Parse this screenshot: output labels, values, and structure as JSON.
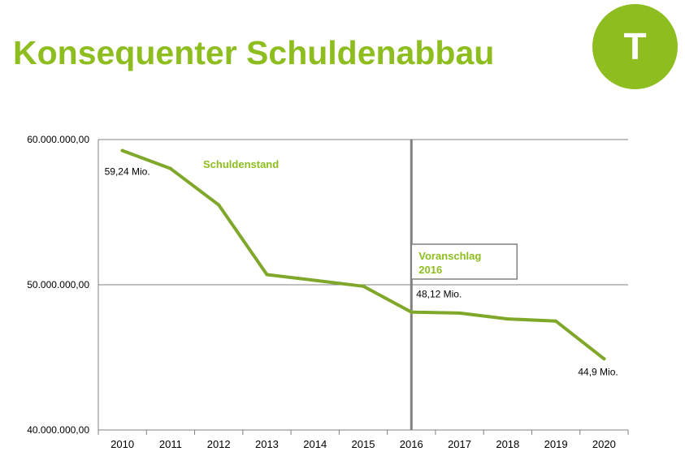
{
  "title": "Konsequenter Schuldenabbau",
  "logo": {
    "letter": "T",
    "color": "#8dbd1f"
  },
  "colors": {
    "accent": "#8dbd1f",
    "line": "#7fa82a",
    "forecast_marker": "#808080",
    "gridline": "#808080"
  },
  "chart_data": {
    "type": "line",
    "title": "",
    "xlabel": "",
    "ylabel": "",
    "categories": [
      "2010",
      "2011",
      "2012",
      "2013",
      "2014",
      "2015",
      "2016",
      "2017",
      "2018",
      "2019",
      "2020"
    ],
    "series": [
      {
        "name": "Schuldenstand",
        "values": [
          59240000,
          58000000,
          55500000,
          50700000,
          50300000,
          49900000,
          48120000,
          48050000,
          47650000,
          47500000,
          44900000
        ]
      }
    ],
    "ylim": [
      40000000,
      60000000
    ],
    "yticks": [
      40000000,
      50000000,
      60000000
    ],
    "ytick_labels": [
      "40.000.000,00",
      "50.000.000,00",
      "60.000.000,00"
    ],
    "grid": true,
    "annotations": [
      {
        "category": "2010",
        "text": "59,24 Mio."
      },
      {
        "category": "2016",
        "text": "48,12 Mio."
      },
      {
        "category": "2020",
        "text": "44,9 Mio."
      }
    ],
    "forecast_marker": {
      "category": "2016",
      "label_line1": "Voranschlag",
      "label_line2": "2016"
    }
  }
}
